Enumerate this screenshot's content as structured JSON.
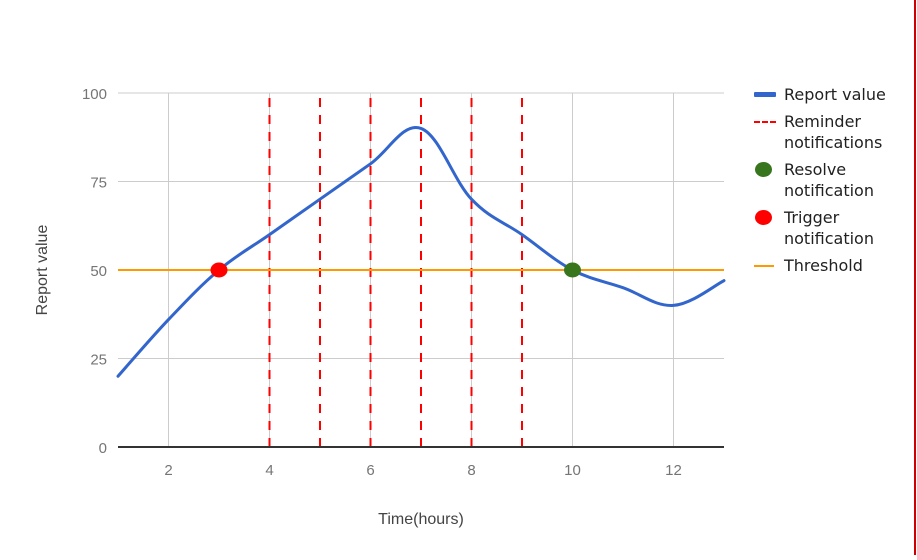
{
  "chart_data": {
    "type": "line",
    "title": "",
    "xlabel": "Time(hours)",
    "ylabel": "Report value",
    "xlim": [
      1,
      13
    ],
    "ylim": [
      0,
      100
    ],
    "x_ticks": [
      2,
      4,
      6,
      8,
      10,
      12
    ],
    "y_ticks": [
      0,
      25,
      50,
      75,
      100
    ],
    "grid": true,
    "legend_position": "right",
    "x": [
      1,
      2,
      3,
      4,
      5,
      6,
      7,
      8,
      9,
      10,
      11,
      12,
      13
    ],
    "series": [
      {
        "name": "Report value",
        "type": "line",
        "color": "#3366cc",
        "smooth": true,
        "values": [
          20,
          36,
          50,
          60,
          70,
          80,
          90,
          70,
          60,
          50,
          45,
          40,
          47
        ]
      },
      {
        "name": "Reminder notifications",
        "type": "vertical-dashed-lines",
        "color": "#ff0000",
        "x": [
          4,
          5,
          6,
          7,
          8,
          9
        ]
      },
      {
        "name": "Resolve notification",
        "type": "point",
        "color": "#38761d",
        "x": 10,
        "y": 50
      },
      {
        "name": "Trigger notification",
        "type": "point",
        "color": "#ff0000",
        "x": 3,
        "y": 50
      },
      {
        "name": "Threshold",
        "type": "horizontal-line",
        "color": "#ff9900",
        "y": 50
      }
    ]
  },
  "legend": {
    "items": [
      {
        "label": "Report value",
        "kind": "line",
        "color": "#3366cc"
      },
      {
        "label": "Reminder\nnotifications",
        "kind": "dash",
        "color": "#ff0000"
      },
      {
        "label": "Resolve\nnotification",
        "kind": "dot",
        "color": "#38761d"
      },
      {
        "label": "Trigger\nnotification",
        "kind": "dot",
        "color": "#ff0000"
      },
      {
        "label": "Threshold",
        "kind": "thin",
        "color": "#ff9900"
      }
    ]
  },
  "colors": {
    "grid": "#cccccc",
    "baseline": "#333333",
    "tick_text": "#757575",
    "axis_title": "#444444",
    "right_border": "#cc0000"
  }
}
